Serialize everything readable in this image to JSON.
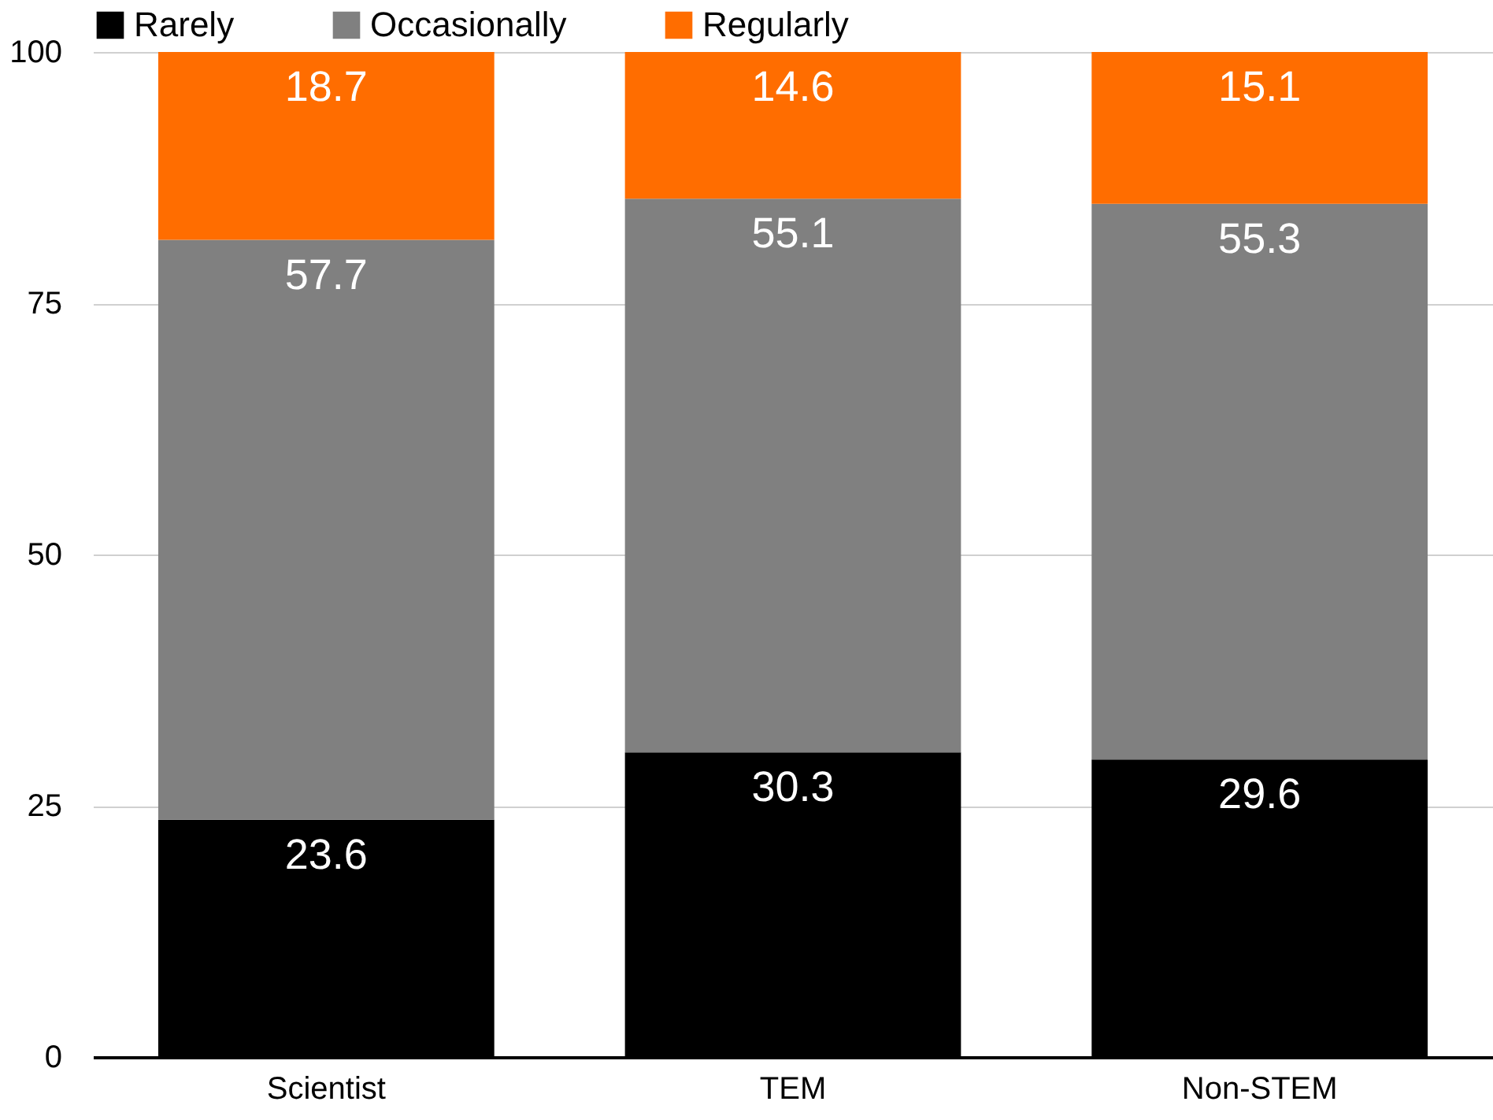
{
  "chart_data": {
    "type": "bar",
    "stacked": true,
    "categories": [
      "Scientist",
      "TEM",
      "Non-STEM"
    ],
    "series": [
      {
        "name": "Rarely",
        "color": "#000000",
        "values": [
          23.6,
          30.3,
          29.6
        ]
      },
      {
        "name": "Occasionally",
        "color": "#808080",
        "values": [
          57.7,
          55.1,
          55.3
        ]
      },
      {
        "name": "Regularly",
        "color": "#ff6d00",
        "values": [
          18.7,
          14.6,
          15.1
        ]
      }
    ],
    "ylim": [
      0,
      100
    ],
    "yticks": [
      0,
      25,
      50,
      75,
      100
    ],
    "grid": "y",
    "legend": "top",
    "data_labels": true
  }
}
